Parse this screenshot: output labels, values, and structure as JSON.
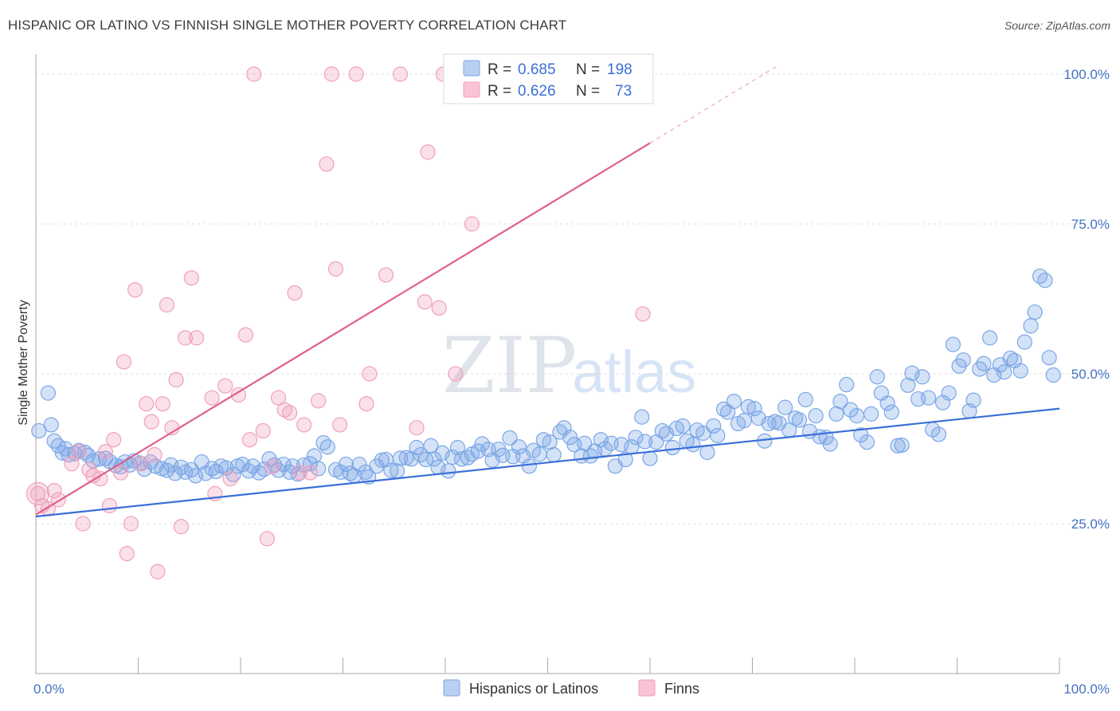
{
  "title": "HISPANIC OR LATINO VS FINNISH SINGLE MOTHER POVERTY CORRELATION CHART",
  "source": "Source: ZipAtlas.com",
  "watermark": {
    "zip": "ZIP",
    "atlas": "atlas"
  },
  "chart_data": {
    "type": "scatter",
    "title": "HISPANIC OR LATINO VS FINNISH SINGLE MOTHER POVERTY CORRELATION CHART",
    "xlabel": "",
    "ylabel": "Single Mother Poverty",
    "xlim": [
      0,
      100
    ],
    "ylim": [
      0,
      100
    ],
    "x_tick_labels": [
      {
        "value": 0,
        "label": "0.0%"
      },
      {
        "value": 100,
        "label": "100.0%"
      }
    ],
    "y_tick_labels": [
      {
        "value": 25,
        "label": "25.0%"
      },
      {
        "value": 50,
        "label": "50.0%"
      },
      {
        "value": 75,
        "label": "75.0%"
      },
      {
        "value": 100,
        "label": "100.0%"
      }
    ],
    "grid": "horizontal dashed",
    "legend_position": "top-center",
    "stats": [
      {
        "r_label": "R =",
        "r": "0.685",
        "n_label": "N =",
        "n": "198"
      },
      {
        "r_label": "R =",
        "r": "0.626",
        "n_label": "N =",
        "n": "73"
      }
    ],
    "series": [
      {
        "name": "Hispanics or Latinos",
        "color": "#7aa6e6",
        "line_color": "#3a6fd8",
        "trendline": {
          "x0": 0,
          "y0": 26.2,
          "x1": 100,
          "y1": 44.2
        },
        "points": [
          [
            0.3,
            40.5
          ],
          [
            1.2,
            46.8
          ],
          [
            1.5,
            41.5
          ],
          [
            1.8,
            38.8
          ],
          [
            2.2,
            38.0
          ],
          [
            2.6,
            36.8
          ],
          [
            2.9,
            37.5
          ],
          [
            3.2,
            36.5
          ],
          [
            3.8,
            36.7
          ],
          [
            4.2,
            37.2
          ],
          [
            4.8,
            36.9
          ],
          [
            5.1,
            36.4
          ],
          [
            5.6,
            35.5
          ],
          [
            6.2,
            35.8
          ],
          [
            6.8,
            35.9
          ],
          [
            7.2,
            35.4
          ],
          [
            7.8,
            34.7
          ],
          [
            8.3,
            34.5
          ],
          [
            8.7,
            35.3
          ],
          [
            9.2,
            34.8
          ],
          [
            9.6,
            35.5
          ],
          [
            10.2,
            35.1
          ],
          [
            10.6,
            34.1
          ],
          [
            11.2,
            35.3
          ],
          [
            11.7,
            34.6
          ],
          [
            12.3,
            34.2
          ],
          [
            12.8,
            33.9
          ],
          [
            13.2,
            34.8
          ],
          [
            13.6,
            33.4
          ],
          [
            14.2,
            34.4
          ],
          [
            14.6,
            33.6
          ],
          [
            15.2,
            34.0
          ],
          [
            15.6,
            33.0
          ],
          [
            16.2,
            35.3
          ],
          [
            16.6,
            33.4
          ],
          [
            17.2,
            34.2
          ],
          [
            17.6,
            33.7
          ],
          [
            18.1,
            34.6
          ],
          [
            18.6,
            34.3
          ],
          [
            19.3,
            33.2
          ],
          [
            19.7,
            34.6
          ],
          [
            20.2,
            34.9
          ],
          [
            20.8,
            33.8
          ],
          [
            21.2,
            34.6
          ],
          [
            21.8,
            33.5
          ],
          [
            22.3,
            34.1
          ],
          [
            22.8,
            35.8
          ],
          [
            23.3,
            34.8
          ],
          [
            23.7,
            33.9
          ],
          [
            24.2,
            34.9
          ],
          [
            24.8,
            33.6
          ],
          [
            25.1,
            34.6
          ],
          [
            25.6,
            33.3
          ],
          [
            26.2,
            34.8
          ],
          [
            26.8,
            35.0
          ],
          [
            27.2,
            36.3
          ],
          [
            27.6,
            34.2
          ],
          [
            28.1,
            38.5
          ],
          [
            28.5,
            37.8
          ],
          [
            29.3,
            34.0
          ],
          [
            29.8,
            33.6
          ],
          [
            30.3,
            34.9
          ],
          [
            30.7,
            33.4
          ],
          [
            31.1,
            33.0
          ],
          [
            31.6,
            34.9
          ],
          [
            32.2,
            33.6
          ],
          [
            32.5,
            32.8
          ],
          [
            33.3,
            34.6
          ],
          [
            33.8,
            35.6
          ],
          [
            34.2,
            35.7
          ],
          [
            34.7,
            33.9
          ],
          [
            35.3,
            33.8
          ],
          [
            35.6,
            35.9
          ],
          [
            36.2,
            36.0
          ],
          [
            36.7,
            35.8
          ],
          [
            37.2,
            37.7
          ],
          [
            37.6,
            36.5
          ],
          [
            38.1,
            35.7
          ],
          [
            38.6,
            38.0
          ],
          [
            38.9,
            35.8
          ],
          [
            39.3,
            34.4
          ],
          [
            39.7,
            36.8
          ],
          [
            40.3,
            33.8
          ],
          [
            40.7,
            36.1
          ],
          [
            41.2,
            37.7
          ],
          [
            41.6,
            35.8
          ],
          [
            42.2,
            36.0
          ],
          [
            42.6,
            36.6
          ],
          [
            43.2,
            37.1
          ],
          [
            43.6,
            38.3
          ],
          [
            44.2,
            37.4
          ],
          [
            44.6,
            35.6
          ],
          [
            45.2,
            37.4
          ],
          [
            45.6,
            36.4
          ],
          [
            46.3,
            39.3
          ],
          [
            46.6,
            36.2
          ],
          [
            47.2,
            37.8
          ],
          [
            47.6,
            36.3
          ],
          [
            48.2,
            34.6
          ],
          [
            48.6,
            37.2
          ],
          [
            49.2,
            36.6
          ],
          [
            49.6,
            39.0
          ],
          [
            50.2,
            38.6
          ],
          [
            50.6,
            36.5
          ],
          [
            51.2,
            40.3
          ],
          [
            51.6,
            41.0
          ],
          [
            52.2,
            39.4
          ],
          [
            52.6,
            38.2
          ],
          [
            53.3,
            36.3
          ],
          [
            53.6,
            38.4
          ],
          [
            54.2,
            36.3
          ],
          [
            54.6,
            37.1
          ],
          [
            55.2,
            39.0
          ],
          [
            55.6,
            37.5
          ],
          [
            56.2,
            38.4
          ],
          [
            56.6,
            34.6
          ],
          [
            57.2,
            38.2
          ],
          [
            57.6,
            35.7
          ],
          [
            58.2,
            37.8
          ],
          [
            58.6,
            39.4
          ],
          [
            59.2,
            42.8
          ],
          [
            59.5,
            38.7
          ],
          [
            60.0,
            35.9
          ],
          [
            60.6,
            38.6
          ],
          [
            61.2,
            40.5
          ],
          [
            61.6,
            40.0
          ],
          [
            62.2,
            37.7
          ],
          [
            62.6,
            40.9
          ],
          [
            63.2,
            41.3
          ],
          [
            63.6,
            38.8
          ],
          [
            64.2,
            38.2
          ],
          [
            64.6,
            40.6
          ],
          [
            65.2,
            40.1
          ],
          [
            65.6,
            36.9
          ],
          [
            66.2,
            41.3
          ],
          [
            66.6,
            39.7
          ],
          [
            67.2,
            44.1
          ],
          [
            67.6,
            43.6
          ],
          [
            68.2,
            45.4
          ],
          [
            68.6,
            41.7
          ],
          [
            69.2,
            42.2
          ],
          [
            69.6,
            44.5
          ],
          [
            70.2,
            44.2
          ],
          [
            70.6,
            42.6
          ],
          [
            71.2,
            38.8
          ],
          [
            71.6,
            41.7
          ],
          [
            72.2,
            42.0
          ],
          [
            72.6,
            41.8
          ],
          [
            73.2,
            44.4
          ],
          [
            73.6,
            40.6
          ],
          [
            74.2,
            42.6
          ],
          [
            74.6,
            42.3
          ],
          [
            75.2,
            45.7
          ],
          [
            75.6,
            40.4
          ],
          [
            76.2,
            43.0
          ],
          [
            76.6,
            39.5
          ],
          [
            77.2,
            39.4
          ],
          [
            77.6,
            38.3
          ],
          [
            78.2,
            43.3
          ],
          [
            78.6,
            45.4
          ],
          [
            79.2,
            48.2
          ],
          [
            79.6,
            44.0
          ],
          [
            80.2,
            43.0
          ],
          [
            80.6,
            39.8
          ],
          [
            81.2,
            38.6
          ],
          [
            81.6,
            43.3
          ],
          [
            82.2,
            49.5
          ],
          [
            82.6,
            46.8
          ],
          [
            83.2,
            45.1
          ],
          [
            83.6,
            43.6
          ],
          [
            84.2,
            38.0
          ],
          [
            84.6,
            38.1
          ],
          [
            85.2,
            48.1
          ],
          [
            85.6,
            50.1
          ],
          [
            86.2,
            45.8
          ],
          [
            86.6,
            49.5
          ],
          [
            87.2,
            46.0
          ],
          [
            87.6,
            40.7
          ],
          [
            88.2,
            39.9
          ],
          [
            88.6,
            45.2
          ],
          [
            89.2,
            46.8
          ],
          [
            89.6,
            54.9
          ],
          [
            90.2,
            51.3
          ],
          [
            90.6,
            52.3
          ],
          [
            91.2,
            43.8
          ],
          [
            91.6,
            45.6
          ],
          [
            92.2,
            50.8
          ],
          [
            92.6,
            51.7
          ],
          [
            93.2,
            56.0
          ],
          [
            93.6,
            49.8
          ],
          [
            94.2,
            51.5
          ],
          [
            94.6,
            50.3
          ],
          [
            95.2,
            52.6
          ],
          [
            95.6,
            52.2
          ],
          [
            96.2,
            50.5
          ],
          [
            96.6,
            55.3
          ],
          [
            97.2,
            58.0
          ],
          [
            97.6,
            60.3
          ],
          [
            98.1,
            66.3
          ],
          [
            98.6,
            65.6
          ],
          [
            99.0,
            52.7
          ],
          [
            99.4,
            49.8
          ]
        ]
      },
      {
        "name": "Finns",
        "color": "#f0a0bc",
        "line_color": "#e0608a",
        "trendline": {
          "x0": 0,
          "y0": 26.5,
          "x1": 60,
          "y1": 88.5
        },
        "points": [
          [
            0.2,
            30.0
          ],
          [
            0.6,
            28.0
          ],
          [
            1.2,
            27.5
          ],
          [
            1.8,
            30.5
          ],
          [
            2.2,
            29.0
          ],
          [
            3.5,
            35.0
          ],
          [
            4.2,
            37.0
          ],
          [
            4.6,
            25.0
          ],
          [
            5.2,
            34.0
          ],
          [
            5.6,
            33.0
          ],
          [
            6.3,
            32.5
          ],
          [
            6.8,
            37.0
          ],
          [
            7.2,
            28.0
          ],
          [
            7.6,
            39.0
          ],
          [
            8.3,
            33.5
          ],
          [
            8.6,
            52.0
          ],
          [
            8.9,
            20.0
          ],
          [
            9.3,
            25.0
          ],
          [
            9.7,
            64.0
          ],
          [
            10.3,
            35.0
          ],
          [
            10.8,
            45.0
          ],
          [
            11.3,
            42.0
          ],
          [
            11.6,
            36.5
          ],
          [
            11.9,
            17.0
          ],
          [
            12.4,
            45.0
          ],
          [
            12.8,
            61.5
          ],
          [
            13.3,
            41.0
          ],
          [
            13.7,
            49.0
          ],
          [
            14.2,
            24.5
          ],
          [
            14.6,
            56.0
          ],
          [
            15.2,
            66.0
          ],
          [
            15.7,
            56.0
          ],
          [
            17.2,
            46.0
          ],
          [
            17.5,
            30.0
          ],
          [
            18.5,
            48.0
          ],
          [
            19.0,
            32.5
          ],
          [
            19.8,
            46.5
          ],
          [
            20.5,
            56.5
          ],
          [
            20.9,
            39.0
          ],
          [
            21.3,
            100.0
          ],
          [
            22.2,
            40.5
          ],
          [
            22.6,
            22.5
          ],
          [
            23.1,
            34.5
          ],
          [
            23.7,
            46.0
          ],
          [
            24.3,
            44.0
          ],
          [
            24.8,
            43.5
          ],
          [
            25.3,
            63.5
          ],
          [
            25.8,
            33.5
          ],
          [
            26.2,
            41.5
          ],
          [
            26.8,
            33.5
          ],
          [
            27.6,
            45.5
          ],
          [
            28.4,
            85.0
          ],
          [
            28.9,
            100.0
          ],
          [
            29.3,
            67.5
          ],
          [
            29.7,
            41.5
          ],
          [
            31.3,
            100.0
          ],
          [
            32.3,
            45.0
          ],
          [
            32.6,
            50.0
          ],
          [
            34.2,
            66.5
          ],
          [
            35.6,
            100.0
          ],
          [
            37.2,
            41.0
          ],
          [
            38.0,
            62.0
          ],
          [
            38.3,
            87.0
          ],
          [
            39.4,
            61.0
          ],
          [
            39.8,
            100.0
          ],
          [
            42.6,
            75.0
          ],
          [
            46.2,
            100.0
          ],
          [
            47.6,
            100.0
          ],
          [
            50.0,
            100.0
          ],
          [
            54.8,
            100.0
          ],
          [
            59.3,
            60.0
          ],
          [
            41.0,
            50.0
          ]
        ]
      }
    ]
  }
}
